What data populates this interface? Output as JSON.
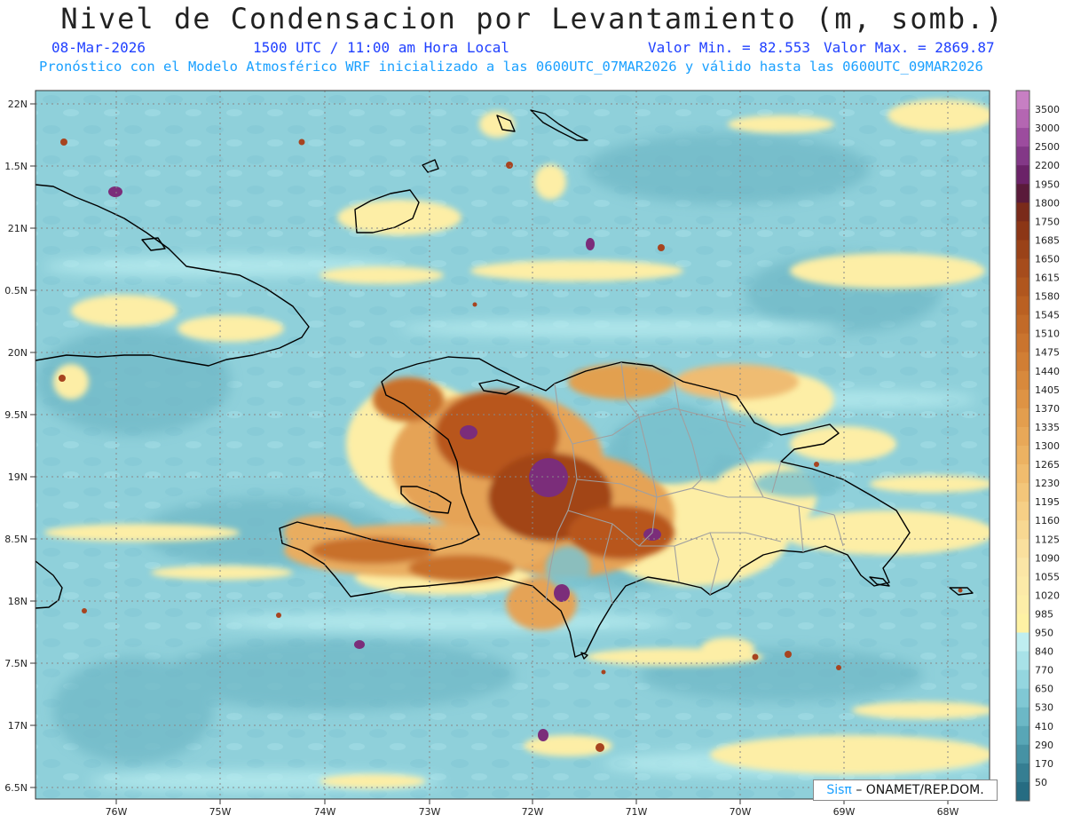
{
  "header": {
    "title": "Nivel de Condensacion por Levantamiento (m, somb.)",
    "date": "08-Mar-2026",
    "time": "1500 UTC / 11:00 am Hora Local",
    "min_label": "Valor Min. = 82.553",
    "max_label": "Valor Max. = 2869.87",
    "forecast": "Pronóstico con el Modelo Atmosférico WRF inicializado a las 0600UTC_07MAR2026 y válido hasta las  0600UTC_09MAR2026"
  },
  "credit": {
    "logo": "Sisπ",
    "text": "– ONAMET/REP.DOM."
  },
  "axes": {
    "lon_labels": [
      "76W",
      "75W",
      "74W",
      "73W",
      "72W",
      "71W",
      "70W",
      "69W",
      "68W"
    ],
    "lat_labels": [
      "22N",
      "1.5N",
      "21N",
      "0.5N",
      "20N",
      "9.5N",
      "19N",
      "8.5N",
      "18N",
      "7.5N",
      "17N",
      "6.5N"
    ]
  },
  "colorbar": {
    "levels": [
      {
        "label": "3500",
        "color": "#c77fc3"
      },
      {
        "label": "3000",
        "color": "#b466b2"
      },
      {
        "label": "2500",
        "color": "#9c4c9e"
      },
      {
        "label": "2200",
        "color": "#833887"
      },
      {
        "label": "1950",
        "color": "#6b2268"
      },
      {
        "label": "1800",
        "color": "#5a1a3a"
      },
      {
        "label": "1750",
        "color": "#7a2a1a"
      },
      {
        "label": "1685",
        "color": "#8c3616"
      },
      {
        "label": "1650",
        "color": "#9a4218"
      },
      {
        "label": "1615",
        "color": "#a64c1c"
      },
      {
        "label": "1580",
        "color": "#b0561e"
      },
      {
        "label": "1545",
        "color": "#ba6022"
      },
      {
        "label": "1510",
        "color": "#c26a28"
      },
      {
        "label": "1475",
        "color": "#ca742e"
      },
      {
        "label": "1440",
        "color": "#d17e34"
      },
      {
        "label": "1405",
        "color": "#d8893c"
      },
      {
        "label": "1370",
        "color": "#de9344"
      },
      {
        "label": "1335",
        "color": "#e39e4e"
      },
      {
        "label": "1300",
        "color": "#e8a858"
      },
      {
        "label": "1265",
        "color": "#ecb262"
      },
      {
        "label": "1230",
        "color": "#f0bc6e"
      },
      {
        "label": "1195",
        "color": "#f3c67a"
      },
      {
        "label": "1160",
        "color": "#f6cf86"
      },
      {
        "label": "1125",
        "color": "#f8d892"
      },
      {
        "label": "1090",
        "color": "#fae09e"
      },
      {
        "label": "1055",
        "color": "#fbe6a6"
      },
      {
        "label": "1020",
        "color": "#fceaa8"
      },
      {
        "label": "985",
        "color": "#fdeea8"
      },
      {
        "label": "950",
        "color": "#fef2a4"
      },
      {
        "label": "840",
        "color": "#bfeef0"
      },
      {
        "label": "770",
        "color": "#a8e2e8"
      },
      {
        "label": "650",
        "color": "#94d6df"
      },
      {
        "label": "530",
        "color": "#80c8d4"
      },
      {
        "label": "410",
        "color": "#6cb8c6"
      },
      {
        "label": "290",
        "color": "#58a6b6"
      },
      {
        "label": "170",
        "color": "#4692a4"
      },
      {
        "label": "50",
        "color": "#357e92"
      },
      {
        "label": "",
        "color": "#266c82"
      }
    ]
  }
}
